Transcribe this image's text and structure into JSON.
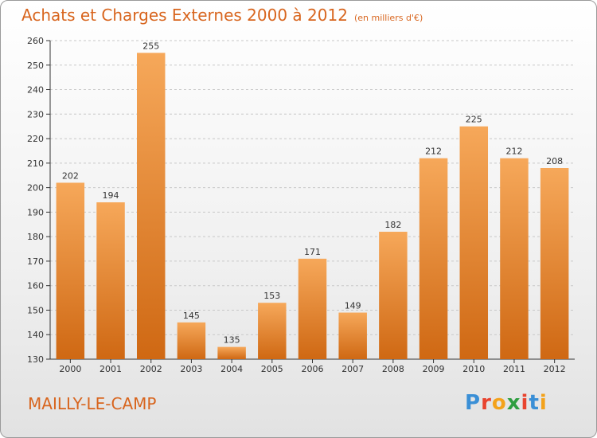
{
  "header": {
    "title": "Achats et Charges Externes 2000 à 2012",
    "unit": "(en milliers d'€)"
  },
  "footer": {
    "place": "MAILLY-LE-CAMP"
  },
  "logo": {
    "letters": [
      "P",
      "r",
      "o",
      "x",
      "i",
      "t",
      "i"
    ],
    "colors": [
      "#3a8fd6",
      "#e8432e",
      "#f3a21b",
      "#2e9e3f",
      "#e8432e",
      "#3a8fd6",
      "#f3a21b"
    ]
  },
  "colors": {
    "bar_light": "#f6a85a",
    "bar_dark": "#cf6813",
    "accent": "#d8651e",
    "axis": "#333333",
    "grid": "#c8c8c8"
  },
  "chart_data": {
    "type": "bar",
    "title": "Achats et Charges Externes 2000 à 2012",
    "subtitle": "(en milliers d'€)",
    "categories": [
      "2000",
      "2001",
      "2002",
      "2003",
      "2004",
      "2005",
      "2006",
      "2007",
      "2008",
      "2009",
      "2010",
      "2011",
      "2012"
    ],
    "values": [
      202,
      194,
      255,
      145,
      135,
      153,
      171,
      149,
      182,
      212,
      225,
      212,
      208
    ],
    "ylim": [
      130,
      260
    ],
    "yticks": [
      130,
      140,
      150,
      160,
      170,
      180,
      190,
      200,
      210,
      220,
      230,
      240,
      250,
      260
    ],
    "grid": "y dashed",
    "data_labels": true
  }
}
